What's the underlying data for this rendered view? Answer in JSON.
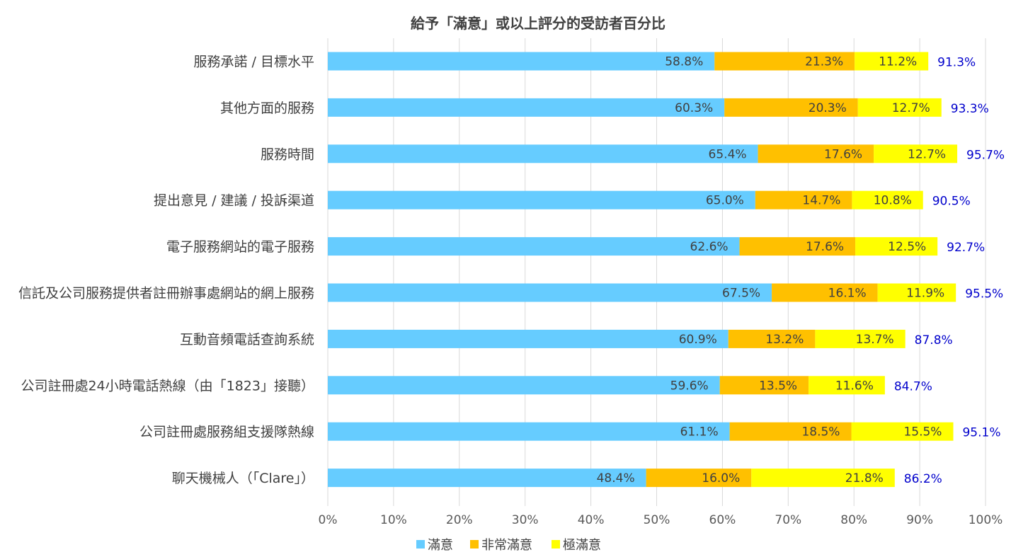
{
  "chart_data": {
    "type": "bar",
    "orientation": "horizontal",
    "stacked": true,
    "title": "給予「滿意」或以上評分的受訪者百分比",
    "categories": [
      "服務承諾 / 目標水平",
      "其他方面的服務",
      "服務時間",
      "提出意見 / 建議 / 投訴渠道",
      "電子服務網站的電子服務",
      "信託及公司服務提供者註冊辦事處網站的網上服務",
      "互動音頻電話查詢系統",
      "公司註冊處24小時電話熱線（由「1823」接聽）",
      "公司註冊處服務組支援隊熱線",
      "聊天機械人（「Clare」）"
    ],
    "series": [
      {
        "name": "滿意",
        "color": "#66CCFF",
        "values": [
          58.8,
          60.3,
          65.4,
          65.0,
          62.6,
          67.5,
          60.9,
          59.6,
          61.1,
          48.4
        ],
        "labels": [
          "58.8%",
          "60.3%",
          "65.4%",
          "65.0%",
          "62.6%",
          "67.5%",
          "60.9%",
          "59.6%",
          "61.1%",
          "48.4%"
        ]
      },
      {
        "name": "非常滿意",
        "color": "#FFC000",
        "values": [
          21.3,
          20.3,
          17.6,
          14.7,
          17.6,
          16.1,
          13.2,
          13.5,
          18.5,
          16.0
        ],
        "labels": [
          "21.3%",
          "20.3%",
          "17.6%",
          "14.7%",
          "17.6%",
          "16.1%",
          "13.2%",
          "13.5%",
          "18.5%",
          "16.0%"
        ]
      },
      {
        "name": "極滿意",
        "color": "#FFFF00",
        "values": [
          11.2,
          12.7,
          12.7,
          10.8,
          12.5,
          11.9,
          13.7,
          11.6,
          15.5,
          21.8
        ],
        "labels": [
          "11.2%",
          "12.7%",
          "12.7%",
          "10.8%",
          "12.5%",
          "11.9%",
          "13.7%",
          "11.6%",
          "15.5%",
          "21.8%"
        ]
      }
    ],
    "totals": [
      "91.3%",
      "93.3%",
      "95.7%",
      "90.5%",
      "92.7%",
      "95.5%",
      "87.8%",
      "84.7%",
      "95.1%",
      "86.2%"
    ],
    "total_color": "#0000CC",
    "xlim": [
      0,
      100
    ],
    "xticks": [
      "0%",
      "10%",
      "20%",
      "30%",
      "40%",
      "50%",
      "60%",
      "70%",
      "80%",
      "90%",
      "100%"
    ],
    "grid": true,
    "grid_color": "#D9D9D9",
    "legend_position": "bottom"
  }
}
